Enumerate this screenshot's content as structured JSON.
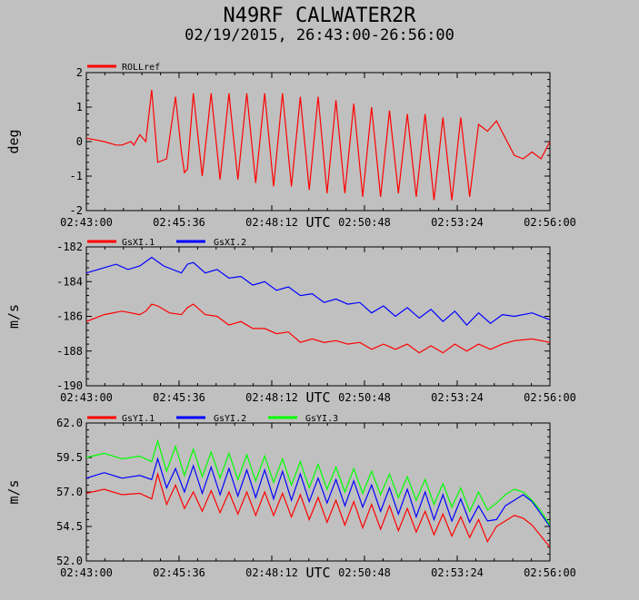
{
  "title": "N49RF CALWATER2R",
  "subtitle": "02/19/2015, 26:43:00-26:56:00",
  "chart_data": [
    {
      "type": "line",
      "ylabel": "deg",
      "xlabel": "UTC",
      "xlim": [
        0,
        780
      ],
      "ylim": [
        -2,
        2
      ],
      "yticks": [
        "2",
        "1",
        "0",
        "-1",
        "-2"
      ],
      "xticks": [
        "02:43:00",
        "02:45:36",
        "02:48:12",
        "02:50:48",
        "02:53:24",
        "02:56:00"
      ],
      "legend_position": "top-left",
      "series": [
        {
          "name": "ROLLref",
          "color": "#ff0000",
          "x": [
            0,
            30,
            50,
            60,
            75,
            80,
            90,
            100,
            110,
            120,
            135,
            150,
            160,
            165,
            170,
            180,
            195,
            210,
            225,
            240,
            255,
            270,
            285,
            300,
            315,
            330,
            345,
            360,
            375,
            390,
            405,
            420,
            435,
            450,
            465,
            480,
            495,
            510,
            525,
            540,
            555,
            570,
            585,
            600,
            615,
            630,
            645,
            660,
            675,
            690,
            705,
            720,
            735,
            750,
            765,
            780
          ],
          "y": [
            0.1,
            0.0,
            -0.1,
            -0.1,
            0.0,
            -0.1,
            0.2,
            0.0,
            1.5,
            -0.6,
            -0.5,
            1.3,
            -0.3,
            -0.9,
            -0.8,
            1.4,
            -1.0,
            1.4,
            -1.1,
            1.4,
            -1.1,
            1.4,
            -1.2,
            1.4,
            -1.3,
            1.4,
            -1.3,
            1.3,
            -1.4,
            1.3,
            -1.5,
            1.2,
            -1.5,
            1.1,
            -1.6,
            1.0,
            -1.6,
            0.9,
            -1.5,
            0.8,
            -1.6,
            0.8,
            -1.7,
            0.7,
            -1.7,
            0.7,
            -1.6,
            0.5,
            0.3,
            0.6,
            0.1,
            -0.4,
            -0.5,
            -0.3,
            -0.5,
            0.0
          ]
        }
      ]
    },
    {
      "type": "line",
      "ylabel": "m/s",
      "xlabel": "UTC",
      "xlim": [
        0,
        780
      ],
      "ylim": [
        -190,
        -182
      ],
      "yticks": [
        "-182",
        "-184",
        "-186",
        "-188",
        "-190"
      ],
      "xticks": [
        "02:43:00",
        "02:45:36",
        "02:48:12",
        "02:50:48",
        "02:53:24",
        "02:56:00"
      ],
      "legend_position": "top-left",
      "series": [
        {
          "name": "GsXI.1",
          "color": "#ff0000",
          "x": [
            0,
            30,
            60,
            90,
            100,
            110,
            120,
            140,
            160,
            170,
            180,
            200,
            220,
            240,
            260,
            280,
            300,
            320,
            340,
            360,
            380,
            400,
            420,
            440,
            460,
            480,
            500,
            520,
            540,
            560,
            580,
            600,
            620,
            640,
            660,
            680,
            700,
            720,
            750,
            780
          ],
          "y": [
            -186.3,
            -185.9,
            -185.7,
            -185.9,
            -185.7,
            -185.3,
            -185.4,
            -185.8,
            -185.9,
            -185.5,
            -185.3,
            -185.9,
            -186.0,
            -186.5,
            -186.3,
            -186.7,
            -186.7,
            -187.0,
            -186.9,
            -187.5,
            -187.3,
            -187.5,
            -187.4,
            -187.6,
            -187.5,
            -187.9,
            -187.6,
            -187.9,
            -187.6,
            -188.1,
            -187.7,
            -188.1,
            -187.6,
            -188.0,
            -187.6,
            -187.9,
            -187.6,
            -187.4,
            -187.3,
            -187.5
          ]
        },
        {
          "name": "GsXI.2",
          "color": "#0000ff",
          "x": [
            0,
            30,
            50,
            70,
            90,
            110,
            130,
            160,
            170,
            180,
            200,
            220,
            240,
            260,
            280,
            300,
            320,
            340,
            360,
            380,
            400,
            420,
            440,
            460,
            480,
            500,
            520,
            540,
            560,
            580,
            600,
            620,
            640,
            660,
            680,
            700,
            720,
            750,
            780
          ],
          "y": [
            -183.5,
            -183.2,
            -183.0,
            -183.3,
            -183.1,
            -182.6,
            -183.1,
            -183.5,
            -183.0,
            -182.9,
            -183.5,
            -183.3,
            -183.8,
            -183.7,
            -184.2,
            -184.0,
            -184.5,
            -184.3,
            -184.8,
            -184.7,
            -185.2,
            -185.0,
            -185.3,
            -185.2,
            -185.8,
            -185.4,
            -186.0,
            -185.5,
            -186.1,
            -185.6,
            -186.3,
            -185.7,
            -186.5,
            -185.8,
            -186.4,
            -185.9,
            -186.0,
            -185.8,
            -186.2
          ]
        }
      ]
    },
    {
      "type": "line",
      "ylabel": "m/s",
      "xlabel": "UTC",
      "xlim": [
        0,
        780
      ],
      "ylim": [
        52.0,
        62.0
      ],
      "yticks": [
        "62.0",
        "59.5",
        "57.0",
        "54.5",
        "52.0"
      ],
      "xticks": [
        "02:43:00",
        "02:45:36",
        "02:48:12",
        "02:50:48",
        "02:53:24",
        "02:56:00"
      ],
      "legend_position": "top-left",
      "series": [
        {
          "name": "GsYI.1",
          "color": "#ff0000",
          "x": [
            0,
            30,
            60,
            90,
            110,
            120,
            135,
            150,
            165,
            180,
            195,
            210,
            225,
            240,
            255,
            270,
            285,
            300,
            315,
            330,
            345,
            360,
            375,
            390,
            405,
            420,
            435,
            450,
            465,
            480,
            495,
            510,
            525,
            540,
            555,
            570,
            585,
            600,
            615,
            630,
            645,
            660,
            675,
            690,
            705,
            720,
            735,
            750,
            765,
            780
          ],
          "y": [
            56.9,
            57.2,
            56.8,
            56.9,
            56.5,
            58.3,
            56.1,
            57.5,
            55.8,
            57.0,
            55.6,
            57.1,
            55.5,
            57.0,
            55.4,
            57.0,
            55.3,
            57.0,
            55.3,
            56.9,
            55.2,
            56.8,
            55.0,
            56.6,
            54.8,
            56.4,
            54.6,
            56.3,
            54.4,
            56.1,
            54.3,
            56.0,
            54.2,
            55.8,
            54.1,
            55.6,
            53.9,
            55.4,
            53.8,
            55.2,
            53.7,
            55.0,
            53.4,
            54.5,
            54.9,
            55.3,
            55.1,
            54.6,
            53.8,
            53.0
          ]
        },
        {
          "name": "GsYI.2",
          "color": "#0000ff",
          "x": [
            0,
            30,
            60,
            90,
            110,
            120,
            135,
            150,
            165,
            180,
            195,
            210,
            225,
            240,
            255,
            270,
            285,
            300,
            315,
            330,
            345,
            360,
            375,
            390,
            405,
            420,
            435,
            450,
            465,
            480,
            495,
            510,
            525,
            540,
            555,
            570,
            585,
            600,
            615,
            630,
            645,
            660,
            675,
            690,
            705,
            720,
            735,
            750,
            765,
            780
          ],
          "y": [
            58.0,
            58.4,
            58.0,
            58.2,
            57.9,
            59.4,
            57.3,
            58.7,
            57.0,
            58.9,
            56.9,
            58.8,
            56.8,
            58.7,
            56.7,
            58.6,
            56.6,
            58.6,
            56.5,
            58.5,
            56.4,
            58.3,
            56.3,
            58.0,
            56.2,
            57.9,
            56.0,
            57.8,
            55.9,
            57.5,
            55.6,
            57.3,
            55.4,
            57.2,
            55.2,
            57.0,
            55.0,
            56.8,
            54.9,
            56.5,
            54.8,
            56.0,
            54.9,
            55.0,
            56.0,
            56.4,
            56.8,
            56.3,
            55.4,
            54.5
          ]
        },
        {
          "name": "GsYI.3",
          "color": "#00ff00",
          "x": [
            0,
            30,
            60,
            90,
            110,
            120,
            135,
            150,
            165,
            180,
            195,
            210,
            225,
            240,
            255,
            270,
            285,
            300,
            315,
            330,
            345,
            360,
            375,
            390,
            405,
            420,
            435,
            450,
            465,
            480,
            495,
            510,
            525,
            540,
            555,
            570,
            585,
            600,
            615,
            630,
            645,
            660,
            675,
            690,
            705,
            720,
            735,
            750,
            765,
            780
          ],
          "y": [
            59.5,
            59.8,
            59.4,
            59.6,
            59.2,
            60.7,
            58.5,
            60.3,
            58.2,
            60.1,
            58.1,
            59.9,
            58.0,
            59.8,
            57.9,
            59.7,
            57.8,
            59.6,
            57.7,
            59.4,
            57.5,
            59.2,
            57.3,
            59.0,
            57.2,
            58.8,
            57.0,
            58.7,
            56.9,
            58.5,
            56.8,
            58.3,
            56.6,
            58.1,
            56.4,
            57.9,
            56.1,
            57.6,
            55.9,
            57.3,
            55.6,
            57.0,
            55.7,
            56.2,
            56.8,
            57.2,
            57.0,
            56.4,
            55.6,
            54.6
          ]
        }
      ]
    }
  ]
}
